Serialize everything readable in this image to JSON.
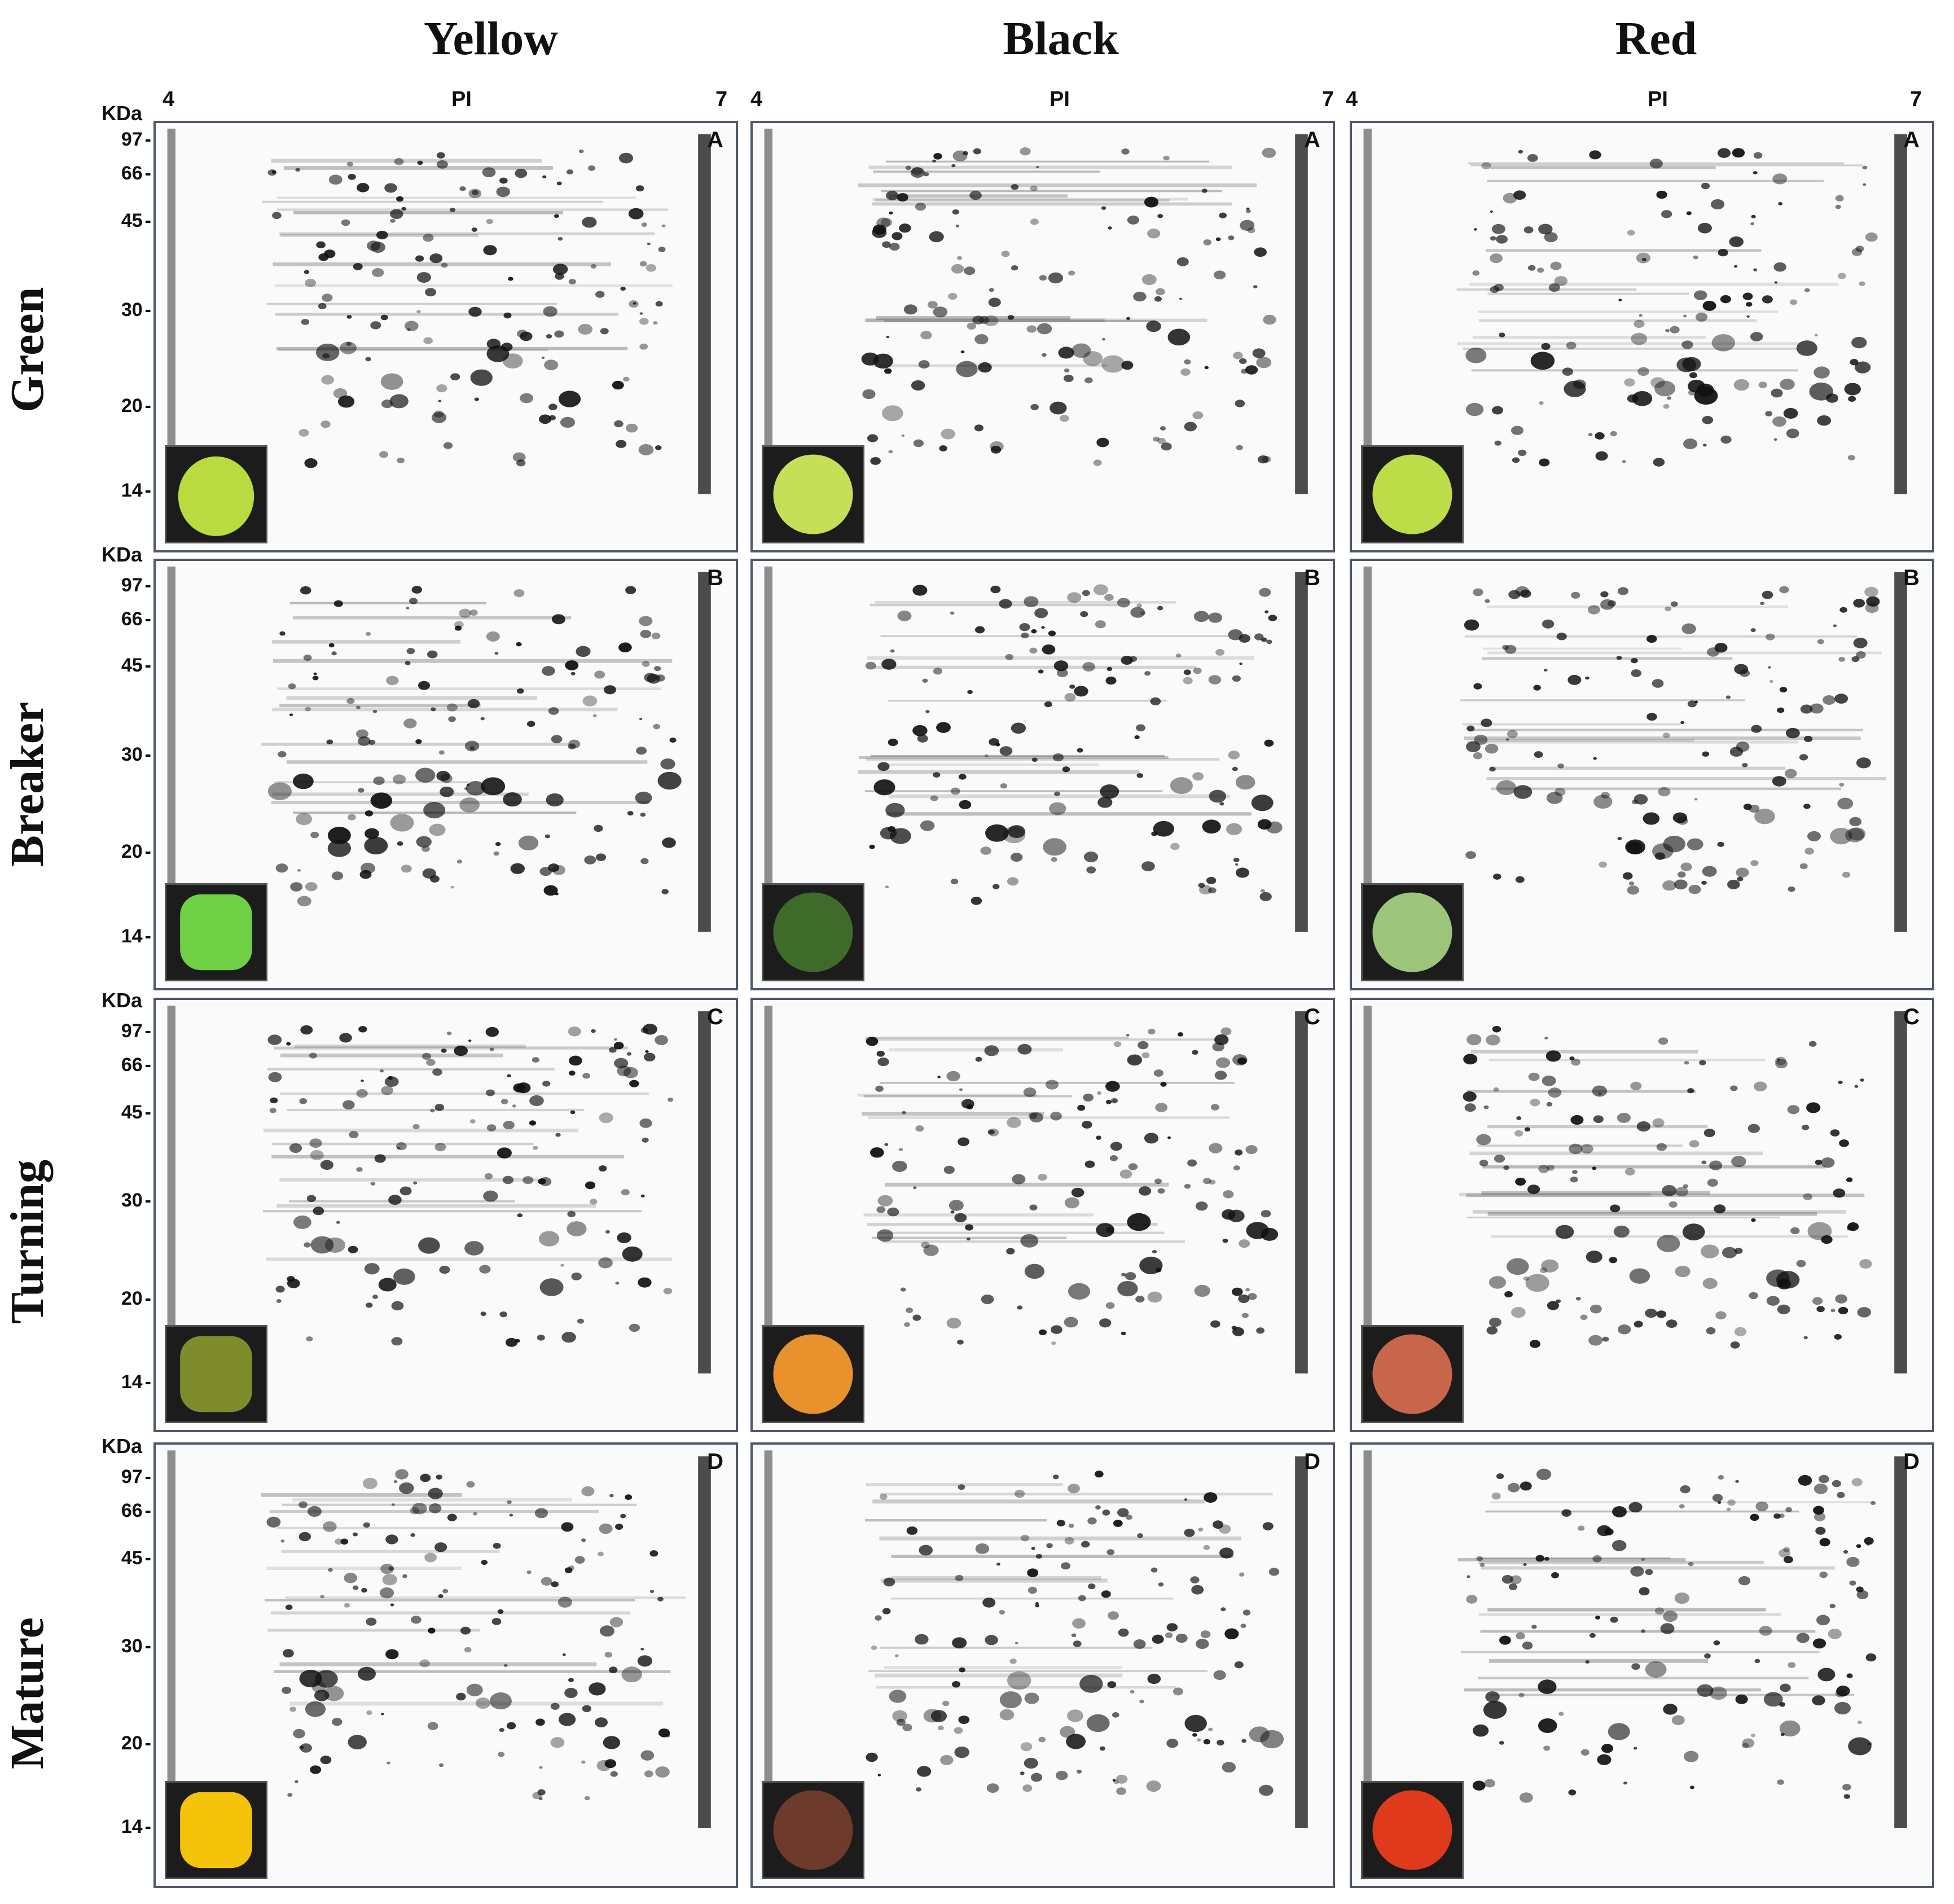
{
  "columns": [
    "Yellow",
    "Black",
    "Red"
  ],
  "rows": [
    "Green",
    "Breaker",
    "Turning",
    "Mature"
  ],
  "panel_letters": [
    "A",
    "B",
    "C",
    "D"
  ],
  "pi_axis": {
    "label": "PI",
    "min": "4",
    "max": "7"
  },
  "mw_axis": {
    "unit": "KDa",
    "markers": [
      "97",
      "66",
      "45",
      "30",
      "20",
      "14"
    ]
  },
  "fruit_colors": {
    "green_yellow": "#b9db3f",
    "green_black": "#c5e058",
    "green_red": "#bcdc48",
    "breaker_yellow": "#6fcf45",
    "breaker_black": "#3e6b2a",
    "breaker_red": "#9cc47a",
    "turning_yellow": "#7f8c2c",
    "turning_black": "#e8922d",
    "turning_red": "#c7664a",
    "mature_yellow": "#f5c20a",
    "mature_black": "#6d3a2c",
    "mature_red": "#e03a1c"
  }
}
